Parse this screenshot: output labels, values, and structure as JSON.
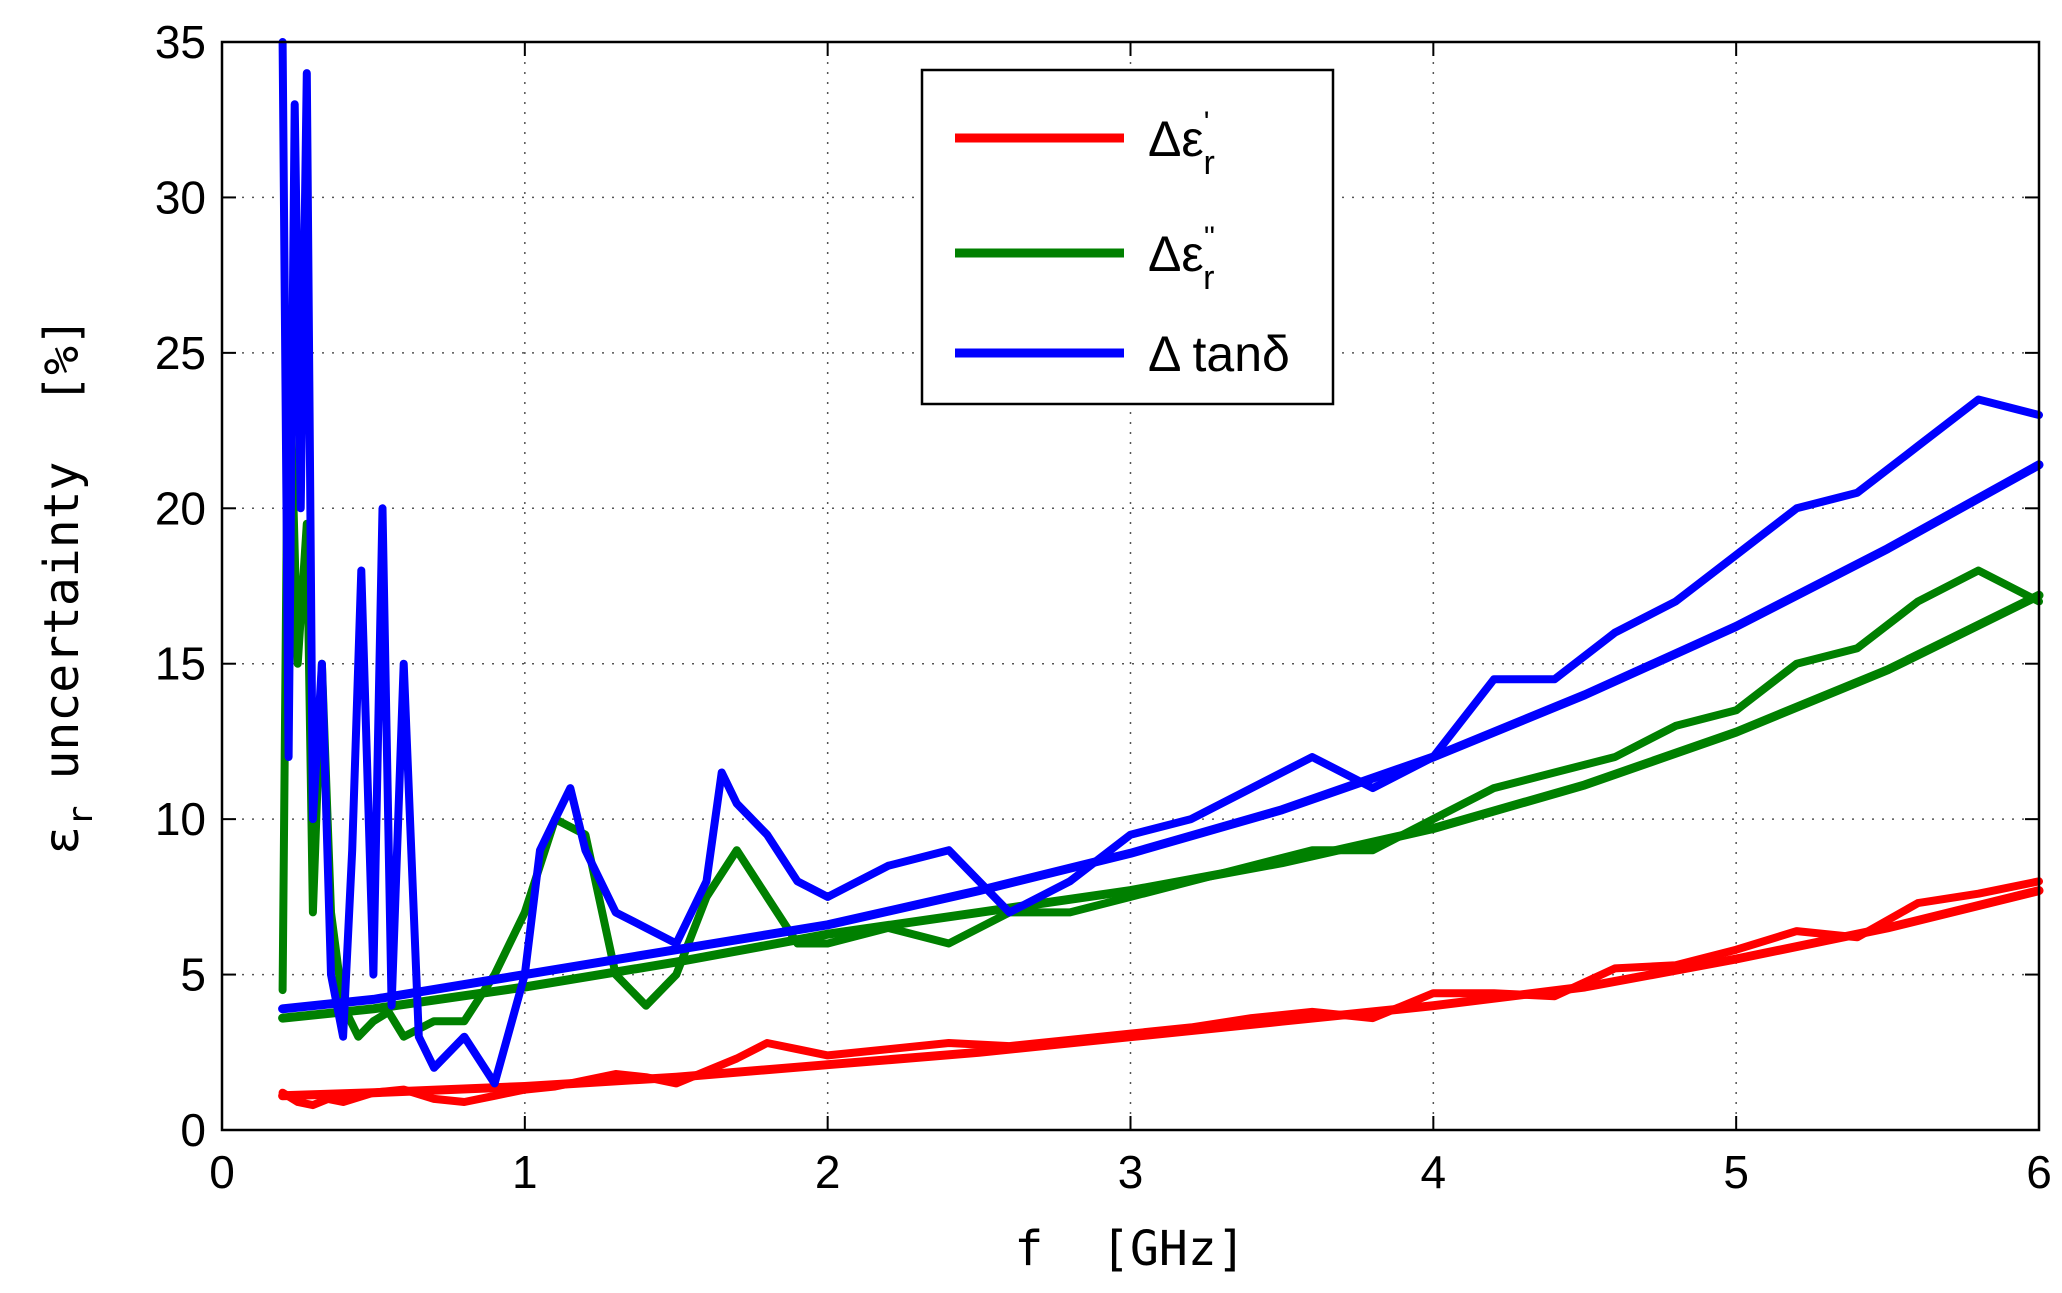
{
  "chart_data": {
    "type": "line",
    "xlabel": "f  [GHz]",
    "ylabel_symbol": "ε",
    "ylabel_subscript": "r",
    "ylabel_text": "uncertainty  [%]",
    "xlim": [
      0,
      6
    ],
    "ylim": [
      0,
      35
    ],
    "x_ticks": [
      "0",
      "1",
      "2",
      "3",
      "4",
      "5",
      "6"
    ],
    "y_ticks": [
      "0",
      "5",
      "10",
      "15",
      "20",
      "25",
      "30",
      "35"
    ],
    "grid": true,
    "legend_position": "top-center",
    "series": [
      {
        "name": "Δε'r",
        "legend_main": "Δε",
        "legend_sub": "r",
        "legend_sup": "'",
        "color": "#ff0000",
        "noisy_x": [
          0.2,
          0.25,
          0.3,
          0.35,
          0.4,
          0.5,
          0.6,
          0.7,
          0.8,
          0.9,
          1.0,
          1.1,
          1.2,
          1.3,
          1.4,
          1.5,
          1.6,
          1.7,
          1.8,
          1.9,
          2.0,
          2.2,
          2.4,
          2.6,
          2.8,
          3.0,
          3.2,
          3.4,
          3.6,
          3.8,
          4.0,
          4.2,
          4.4,
          4.6,
          4.8,
          5.0,
          5.2,
          5.4,
          5.6,
          5.8,
          6.0
        ],
        "noisy_y": [
          1.2,
          0.9,
          0.8,
          1.0,
          0.9,
          1.2,
          1.3,
          1.0,
          0.9,
          1.1,
          1.3,
          1.4,
          1.6,
          1.8,
          1.7,
          1.5,
          1.9,
          2.3,
          2.8,
          2.6,
          2.4,
          2.6,
          2.8,
          2.7,
          2.9,
          3.1,
          3.3,
          3.6,
          3.8,
          3.6,
          4.4,
          4.4,
          4.3,
          5.2,
          5.3,
          5.8,
          6.4,
          6.2,
          7.3,
          7.6,
          8.0
        ],
        "smooth_x": [
          0.2,
          0.5,
          1.0,
          1.5,
          2.0,
          2.5,
          3.0,
          3.5,
          4.0,
          4.5,
          5.0,
          5.5,
          6.0
        ],
        "smooth_y": [
          1.1,
          1.2,
          1.4,
          1.7,
          2.1,
          2.5,
          3.0,
          3.5,
          4.0,
          4.6,
          5.5,
          6.5,
          7.7
        ]
      },
      {
        "name": "Δε''r",
        "legend_main": "Δε",
        "legend_sub": "r",
        "legend_sup": "''",
        "color": "#008000",
        "noisy_x": [
          0.2,
          0.22,
          0.25,
          0.28,
          0.3,
          0.33,
          0.36,
          0.4,
          0.45,
          0.5,
          0.55,
          0.6,
          0.7,
          0.8,
          0.9,
          1.0,
          1.1,
          1.2,
          1.3,
          1.4,
          1.5,
          1.6,
          1.7,
          1.8,
          1.9,
          2.0,
          2.2,
          2.4,
          2.6,
          2.8,
          3.0,
          3.2,
          3.4,
          3.6,
          3.8,
          4.0,
          4.2,
          4.4,
          4.6,
          4.8,
          5.0,
          5.2,
          5.4,
          5.6,
          5.8,
          6.0
        ],
        "noisy_y": [
          4.5,
          26.0,
          15.0,
          19.5,
          7.0,
          15.0,
          7.0,
          4.0,
          3.0,
          3.5,
          3.8,
          3.0,
          3.5,
          3.5,
          5.0,
          7.0,
          10.0,
          9.5,
          5.0,
          4.0,
          5.0,
          7.5,
          9.0,
          7.5,
          6.0,
          6.0,
          6.5,
          6.0,
          7.0,
          7.0,
          7.5,
          8.0,
          8.5,
          9.0,
          9.0,
          10.0,
          11.0,
          11.5,
          12.0,
          13.0,
          13.5,
          15.0,
          15.5,
          17.0,
          18.0,
          17.0
        ],
        "smooth_x": [
          0.2,
          0.5,
          1.0,
          1.5,
          2.0,
          2.5,
          3.0,
          3.5,
          4.0,
          4.5,
          5.0,
          5.5,
          6.0
        ],
        "smooth_y": [
          3.6,
          3.9,
          4.6,
          5.4,
          6.3,
          7.0,
          7.7,
          8.6,
          9.7,
          11.1,
          12.8,
          14.8,
          17.2
        ]
      },
      {
        "name": "Δ tanδ",
        "legend_main": "Δ tanδ",
        "legend_sub": "",
        "legend_sup": "",
        "color": "#0000ff",
        "noisy_x": [
          0.2,
          0.22,
          0.24,
          0.26,
          0.28,
          0.3,
          0.33,
          0.36,
          0.4,
          0.43,
          0.46,
          0.5,
          0.53,
          0.56,
          0.6,
          0.65,
          0.7,
          0.8,
          0.9,
          1.0,
          1.05,
          1.1,
          1.15,
          1.2,
          1.3,
          1.4,
          1.5,
          1.6,
          1.65,
          1.7,
          1.8,
          1.9,
          2.0,
          2.2,
          2.4,
          2.6,
          2.8,
          3.0,
          3.2,
          3.4,
          3.6,
          3.8,
          4.0,
          4.2,
          4.4,
          4.6,
          4.8,
          5.0,
          5.2,
          5.4,
          5.6,
          5.8,
          6.0
        ],
        "noisy_y": [
          35.0,
          12.0,
          33.0,
          20.0,
          34.0,
          10.0,
          15.0,
          5.0,
          3.0,
          9.0,
          18.0,
          5.0,
          20.0,
          4.0,
          15.0,
          3.0,
          2.0,
          3.0,
          1.5,
          5.0,
          9.0,
          10.0,
          11.0,
          9.0,
          7.0,
          6.5,
          6.0,
          8.0,
          11.5,
          10.5,
          9.5,
          8.0,
          7.5,
          8.5,
          9.0,
          7.0,
          8.0,
          9.5,
          10.0,
          11.0,
          12.0,
          11.0,
          12.0,
          14.5,
          14.5,
          16.0,
          17.0,
          18.5,
          20.0,
          20.5,
          22.0,
          23.5,
          23.0
        ],
        "smooth_x": [
          0.2,
          0.5,
          1.0,
          1.5,
          2.0,
          2.5,
          3.0,
          3.5,
          4.0,
          4.5,
          5.0,
          5.5,
          6.0
        ],
        "smooth_y": [
          3.9,
          4.2,
          5.0,
          5.8,
          6.6,
          7.7,
          8.9,
          10.3,
          12.0,
          14.0,
          16.2,
          18.7,
          21.4
        ]
      }
    ]
  }
}
